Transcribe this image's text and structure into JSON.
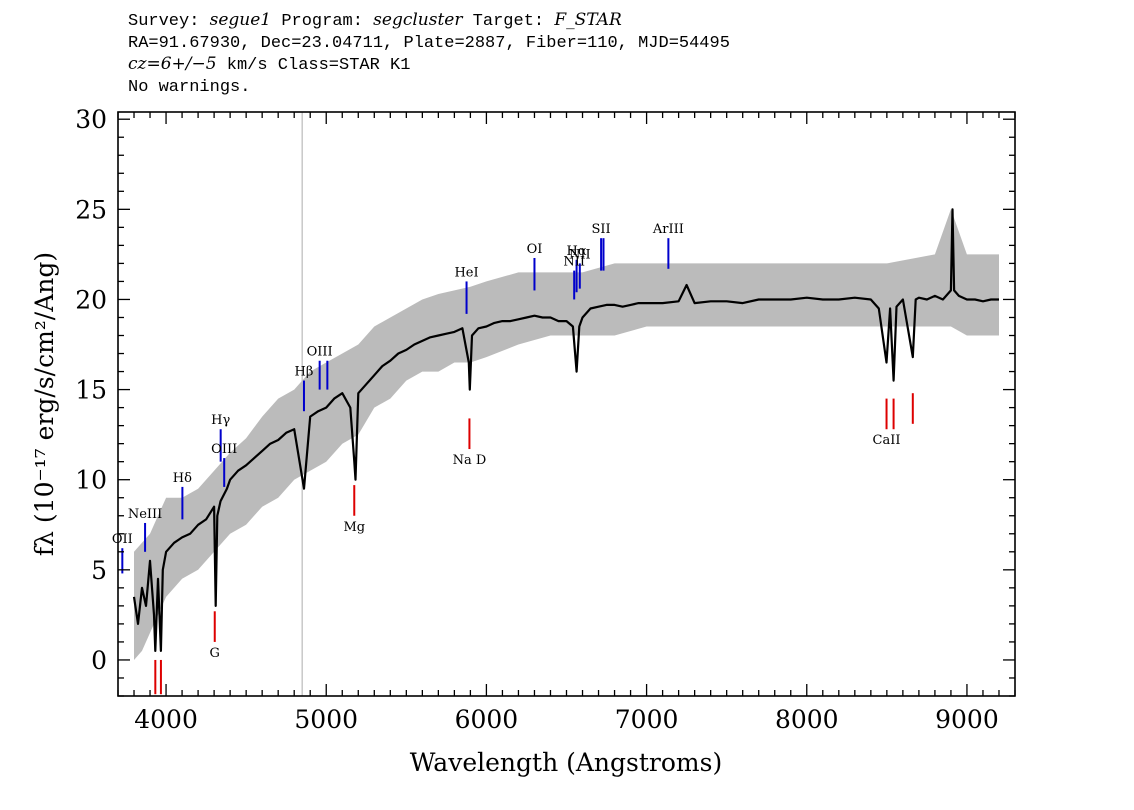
{
  "header": {
    "survey_key": "Survey: ",
    "survey": "segue1",
    "program_key": " Program: ",
    "program": "segcluster",
    "target_key": " Target: ",
    "target": "F_STAR",
    "line2": "RA=91.67930, Dec=23.04711, Plate=2887, Fiber=110, MJD=54495",
    "cz_label": "cz=6+/−5",
    "line3_rest": " km/s Class=STAR K1",
    "line4": "No warnings."
  },
  "chart_data": {
    "type": "line",
    "xlabel": "Wavelength (Angstroms)",
    "ylabel": "fλ (10⁻¹⁷ erg/s/cm²/Ang)",
    "xlim": [
      3700,
      9300
    ],
    "ylim": [
      -2,
      30.4
    ],
    "xticks": [
      4000,
      5000,
      6000,
      7000,
      8000,
      9000
    ],
    "yticks": [
      0,
      5,
      10,
      15,
      20,
      25,
      30
    ],
    "xtick_labels": [
      "4000",
      "5000",
      "6000",
      "7000",
      "8000",
      "9000"
    ],
    "ytick_labels": [
      "0",
      "5",
      "10",
      "15",
      "20",
      "25",
      "30"
    ],
    "reference_line_x": 4850,
    "series": [
      {
        "style": "error-envelope",
        "color": "#bbbbbb",
        "x": [
          3800,
          3850,
          3900,
          3950,
          4000,
          4100,
          4200,
          4300,
          4400,
          4500,
          4600,
          4700,
          4800,
          4900,
          5000,
          5100,
          5200,
          5300,
          5400,
          5500,
          5600,
          5700,
          5800,
          5900,
          6000,
          6200,
          6400,
          6600,
          6800,
          7000,
          7500,
          8000,
          8500,
          8800,
          8900,
          9000,
          9200
        ],
        "upper": [
          6,
          6.5,
          7,
          8,
          9,
          9,
          9.5,
          10.5,
          11.5,
          12.3,
          13.5,
          14.5,
          15,
          16,
          16.5,
          17,
          17.5,
          18.5,
          19,
          19.5,
          20,
          20.3,
          20.5,
          20.7,
          21,
          21.5,
          21.5,
          21.5,
          22,
          22,
          22,
          22,
          22,
          22.5,
          25,
          22.5,
          22.5
        ],
        "lower": [
          0,
          0.5,
          1.5,
          2.5,
          3.5,
          4.5,
          5,
          6,
          7,
          7.5,
          8.5,
          9,
          10,
          10.5,
          11,
          12,
          12.5,
          14,
          14.5,
          15.5,
          16,
          16,
          16.5,
          16.5,
          16.8,
          17.5,
          18,
          18,
          18,
          18.5,
          18.5,
          18.5,
          18.5,
          18.5,
          18.5,
          18,
          18
        ]
      },
      {
        "style": "flux",
        "color": "#000000",
        "x": [
          3800,
          3825,
          3850,
          3875,
          3900,
          3925,
          3933,
          3950,
          3968,
          3980,
          4000,
          4050,
          4100,
          4150,
          4200,
          4250,
          4300,
          4310,
          4320,
          4340,
          4380,
          4400,
          4450,
          4500,
          4550,
          4600,
          4650,
          4700,
          4750,
          4800,
          4861,
          4900,
          4950,
          5000,
          5050,
          5100,
          5150,
          5175,
          5183,
          5200,
          5250,
          5300,
          5350,
          5400,
          5450,
          5500,
          5550,
          5600,
          5650,
          5700,
          5750,
          5800,
          5850,
          5890,
          5896,
          5910,
          5950,
          6000,
          6050,
          6100,
          6150,
          6200,
          6250,
          6300,
          6350,
          6400,
          6450,
          6500,
          6540,
          6563,
          6580,
          6600,
          6650,
          6700,
          6750,
          6800,
          6850,
          6900,
          6950,
          7000,
          7100,
          7200,
          7250,
          7300,
          7400,
          7500,
          7600,
          7700,
          7800,
          7900,
          8000,
          8100,
          8200,
          8300,
          8400,
          8450,
          8498,
          8520,
          8542,
          8560,
          8600,
          8662,
          8680,
          8700,
          8750,
          8800,
          8850,
          8900,
          8910,
          8920,
          8950,
          9000,
          9050,
          9100,
          9150,
          9200
        ],
        "y": [
          3.5,
          2.0,
          4.0,
          3.0,
          5.5,
          2.5,
          0.5,
          4.5,
          0.5,
          5.0,
          6.0,
          6.5,
          6.8,
          7.0,
          7.5,
          7.8,
          8.5,
          3.0,
          8.0,
          8.8,
          9.5,
          10.0,
          10.5,
          10.8,
          11.2,
          11.6,
          12.0,
          12.2,
          12.6,
          12.8,
          9.5,
          13.5,
          13.8,
          14.0,
          14.5,
          14.8,
          14.0,
          11.0,
          10.0,
          14.8,
          15.3,
          15.8,
          16.3,
          16.6,
          17.0,
          17.2,
          17.5,
          17.7,
          17.9,
          18.0,
          18.1,
          18.2,
          18.4,
          16.5,
          15.0,
          18.0,
          18.4,
          18.5,
          18.7,
          18.8,
          18.8,
          18.9,
          19.0,
          19.1,
          19.0,
          19.0,
          18.8,
          18.8,
          18.5,
          16.0,
          18.5,
          19.0,
          19.5,
          19.6,
          19.7,
          19.7,
          19.6,
          19.7,
          19.8,
          19.8,
          19.8,
          19.9,
          20.8,
          19.8,
          19.9,
          19.9,
          19.8,
          20.0,
          20.0,
          20.0,
          20.1,
          20.0,
          20.0,
          20.1,
          20.0,
          19.5,
          16.5,
          19.5,
          15.5,
          19.6,
          20.0,
          16.8,
          20.0,
          20.1,
          20.0,
          20.2,
          20.0,
          20.5,
          25.0,
          20.5,
          20.2,
          20.0,
          20.0,
          19.9,
          20.0,
          20.0
        ]
      }
    ],
    "emission_lines": [
      {
        "label": "OII",
        "x": 3727,
        "y_bottom": 4.8,
        "y_top": 6.2
      },
      {
        "label": "NeIII",
        "x": 3869,
        "y_bottom": 6.0,
        "y_top": 7.6
      },
      {
        "label": "Hδ",
        "x": 4102,
        "y_bottom": 7.8,
        "y_top": 9.6
      },
      {
        "label": "Hγ",
        "x": 4341,
        "y_bottom": 11.0,
        "y_top": 12.8
      },
      {
        "label": "OIII",
        "x": 4363,
        "y_bottom": 9.6,
        "y_top": 11.2
      },
      {
        "label": "Hβ",
        "x": 4861,
        "y_bottom": 13.8,
        "y_top": 15.5
      },
      {
        "label": "OIII",
        "x": 4959,
        "y_bottom": 15.0,
        "y_top": 16.6
      },
      {
        "label": "",
        "x": 5007,
        "y_bottom": 15.0,
        "y_top": 16.6
      },
      {
        "label": "HeI",
        "x": 5876,
        "y_bottom": 19.2,
        "y_top": 21.0
      },
      {
        "label": "OI",
        "x": 6300,
        "y_bottom": 20.5,
        "y_top": 22.3
      },
      {
        "label": "NII",
        "x": 6548,
        "y_bottom": 20.0,
        "y_top": 21.6
      },
      {
        "label": "Hα",
        "x": 6563,
        "y_bottom": 20.4,
        "y_top": 22.2
      },
      {
        "label": "NII",
        "x": 6583,
        "y_bottom": 20.6,
        "y_top": 22.0
      },
      {
        "label": "SII",
        "x": 6716,
        "y_bottom": 21.6,
        "y_top": 23.4
      },
      {
        "label": "",
        "x": 6731,
        "y_bottom": 21.6,
        "y_top": 23.4
      },
      {
        "label": "ArIII",
        "x": 7136,
        "y_bottom": 21.7,
        "y_top": 23.4
      }
    ],
    "absorption_lines": [
      {
        "label": "",
        "x": 3933,
        "y_top": 0.0,
        "y_bottom": -1.9
      },
      {
        "label": "",
        "x": 3968,
        "y_top": 0.0,
        "y_bottom": -1.9
      },
      {
        "label": "G",
        "x": 4304,
        "y_top": 2.7,
        "y_bottom": 1.0
      },
      {
        "label": "Mg",
        "x": 5175,
        "y_top": 9.7,
        "y_bottom": 8.0
      },
      {
        "label": "Na D",
        "x": 5894,
        "y_top": 13.4,
        "y_bottom": 11.7
      },
      {
        "label": "CaII",
        "x": 8498,
        "y_top": 14.5,
        "y_bottom": 12.8
      },
      {
        "label": "",
        "x": 8542,
        "y_top": 14.5,
        "y_bottom": 12.8
      },
      {
        "label": "",
        "x": 8662,
        "y_top": 14.8,
        "y_bottom": 13.1
      }
    ],
    "emission_color": "#0000cc",
    "absorption_color": "#dd0000"
  }
}
